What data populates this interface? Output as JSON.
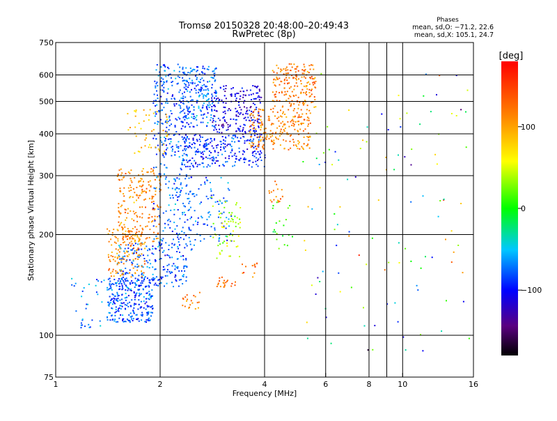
{
  "chart_data": {
    "type": "scatter",
    "title": "Tromsø 20150328 20:48:00–20:49:43",
    "subtitle": "RwPretec (8p)",
    "xlabel": "Frequency [MHz]",
    "ylabel": "Stationary phase Virtual Height [km]",
    "x_scale": "log",
    "y_scale": "log",
    "xlim": [
      1,
      16
    ],
    "ylim": [
      75,
      750
    ],
    "x_ticks": [
      1,
      2,
      4,
      6,
      8,
      10,
      16
    ],
    "x_tick_labels": [
      "1",
      "2",
      "4",
      "6",
      "8",
      "10",
      "16"
    ],
    "x_grid": [
      2,
      4,
      6,
      8,
      9,
      10
    ],
    "y_ticks": [
      75,
      100,
      200,
      300,
      400,
      500,
      600,
      750
    ],
    "y_tick_labels": [
      "75",
      "100",
      "200",
      "300",
      "400",
      "500",
      "600",
      "750"
    ],
    "y_grid": [
      100,
      200,
      300,
      400,
      500,
      600
    ],
    "grid": true,
    "stats": {
      "heading": "Phases",
      "line_o": "mean, sd,O: −71.2, 22.6",
      "line_x": "mean, sd,X: 105.1, 24.7"
    },
    "colorbar": {
      "label": "[deg]",
      "min": -180,
      "max": 180,
      "ticks": [
        100,
        0,
        -100
      ],
      "tick_labels": [
        "100",
        "0",
        "−100"
      ]
    },
    "clusters": [
      {
        "f": [
          1.4,
          1.9
        ],
        "h": [
          110,
          150
        ],
        "phase": -80,
        "n": 260
      },
      {
        "f": [
          1.1,
          1.5
        ],
        "h": [
          105,
          150
        ],
        "phase": -75,
        "n": 50
      },
      {
        "f": [
          1.5,
          2.4
        ],
        "h": [
          140,
          190
        ],
        "phase": -80,
        "n": 220
      },
      {
        "f": [
          1.4,
          1.8
        ],
        "h": [
          150,
          210
        ],
        "phase": 110,
        "n": 130
      },
      {
        "f": [
          1.5,
          2.0
        ],
        "h": [
          190,
          320
        ],
        "phase": 110,
        "n": 220
      },
      {
        "f": [
          1.9,
          2.5
        ],
        "h": [
          180,
          350
        ],
        "phase": -75,
        "n": 130
      },
      {
        "f": [
          1.9,
          2.4
        ],
        "h": [
          340,
          650
        ],
        "phase": -80,
        "n": 220
      },
      {
        "f": [
          1.6,
          2.1
        ],
        "h": [
          350,
          480
        ],
        "phase": 90,
        "n": 50
      },
      {
        "f": [
          2.3,
          2.9
        ],
        "h": [
          420,
          640
        ],
        "phase": -75,
        "n": 220
      },
      {
        "f": [
          2.3,
          4.0
        ],
        "h": [
          320,
          400
        ],
        "phase": -90,
        "n": 260
      },
      {
        "f": [
          2.8,
          3.9
        ],
        "h": [
          400,
          560
        ],
        "phase": -110,
        "n": 200
      },
      {
        "f": [
          3.6,
          5.4
        ],
        "h": [
          360,
          480
        ],
        "phase": 115,
        "n": 220
      },
      {
        "f": [
          4.2,
          5.6
        ],
        "h": [
          480,
          650
        ],
        "phase": 120,
        "n": 180
      },
      {
        "f": [
          2.2,
          3.2
        ],
        "h": [
          190,
          300
        ],
        "phase": -75,
        "n": 110
      },
      {
        "f": [
          2.8,
          3.4
        ],
        "h": [
          170,
          260
        ],
        "phase": 40,
        "n": 60
      },
      {
        "f": [
          2.3,
          2.6
        ],
        "h": [
          120,
          135
        ],
        "phase": 120,
        "n": 20
      },
      {
        "f": [
          2.9,
          3.3
        ],
        "h": [
          140,
          150
        ],
        "phase": 120,
        "n": 20
      },
      {
        "f": [
          3.4,
          3.8
        ],
        "h": [
          150,
          165
        ],
        "phase": 125,
        "n": 12
      },
      {
        "f": [
          4.1,
          4.5
        ],
        "h": [
          250,
          290
        ],
        "phase": 120,
        "n": 20
      },
      {
        "f": [
          4.2,
          4.8
        ],
        "h": [
          180,
          260
        ],
        "phase": 10,
        "n": 20
      },
      {
        "f": [
          5.0,
          15.5
        ],
        "h": [
          90,
          620
        ],
        "phase": 0,
        "n": 120
      }
    ]
  }
}
